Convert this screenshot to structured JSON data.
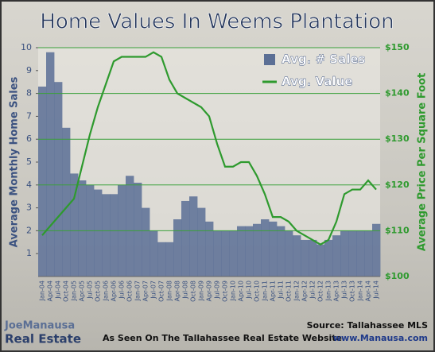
{
  "chart_data": {
    "type": "bar-line",
    "title": "Home Values In Weems Plantation",
    "ylabel": "Average Monthly Home Sales",
    "y2label": "Average Price Per Square Foot",
    "categories": [
      "Jan-04",
      "Apr-04",
      "Jul-04",
      "Oct-04",
      "Jan-05",
      "Apr-05",
      "Jul-05",
      "Oct-05",
      "Jan-06",
      "Apr-06",
      "Jul-06",
      "Oct-06",
      "Jan-07",
      "Apr-07",
      "Jul-07",
      "Oct-07",
      "Jan-08",
      "Apr-08",
      "Jul-08",
      "Oct-08",
      "Jan-09",
      "Apr-09",
      "Jul-09",
      "Oct-09",
      "Jan-10",
      "Apr-10",
      "Jul-10",
      "Oct-10",
      "Jan-11",
      "Apr-11",
      "Jul-11",
      "Oct-11",
      "Jan-12",
      "Apr-12",
      "Jul-12",
      "Oct-12",
      "Jan-13",
      "Apr-13",
      "Jul-13",
      "Oct-13",
      "Jan-14",
      "Apr-14",
      "Jul-14"
    ],
    "series": [
      {
        "name": "Avg. # Sales",
        "color": "#5b6f95",
        "values": [
          8.3,
          9.8,
          8.5,
          6.5,
          4.5,
          4.2,
          4.0,
          3.8,
          3.6,
          3.6,
          4.0,
          4.4,
          4.1,
          3.0,
          2.0,
          1.5,
          1.5,
          2.5,
          3.3,
          3.5,
          3.0,
          2.4,
          2.0,
          2.0,
          2.0,
          2.2,
          2.2,
          2.3,
          2.5,
          2.4,
          2.2,
          2.0,
          1.8,
          1.6,
          1.6,
          1.4,
          1.6,
          1.8,
          2.0,
          2.0,
          2.0,
          2.0,
          2.3
        ]
      },
      {
        "name": "Avg. Value",
        "color": "#2e9a2e",
        "axis": "y2",
        "values": [
          109,
          111,
          113,
          115,
          117,
          124,
          131,
          137,
          142,
          147,
          148,
          148,
          148,
          148,
          149,
          148,
          143,
          140,
          139,
          138,
          137,
          135,
          129,
          124,
          124,
          125,
          125,
          122,
          118,
          113,
          113,
          112,
          110,
          109,
          108,
          107,
          108,
          112,
          118,
          119,
          119,
          121,
          119
        ]
      }
    ],
    "ylim": [
      0,
      10
    ],
    "yticks": [
      1,
      2,
      3,
      4,
      5,
      6,
      7,
      8,
      9,
      10
    ],
    "y2lim": [
      100,
      150
    ],
    "y2ticks": [
      {
        "value": 100,
        "label": "$100"
      },
      {
        "value": 110,
        "label": "$110"
      },
      {
        "value": 120,
        "label": "$120"
      },
      {
        "value": 130,
        "label": "$130"
      },
      {
        "value": 140,
        "label": "$140"
      },
      {
        "value": 150,
        "label": "$150"
      }
    ],
    "grid": "y2",
    "legend": "upper right",
    "source": "Source: Tallahassee MLS",
    "footer": "As Seen On The Tallahassee Real Estate Website",
    "website": "www.Manausa.com",
    "logo_name": "JoeManausa",
    "logo_sub": "Real Estate"
  }
}
